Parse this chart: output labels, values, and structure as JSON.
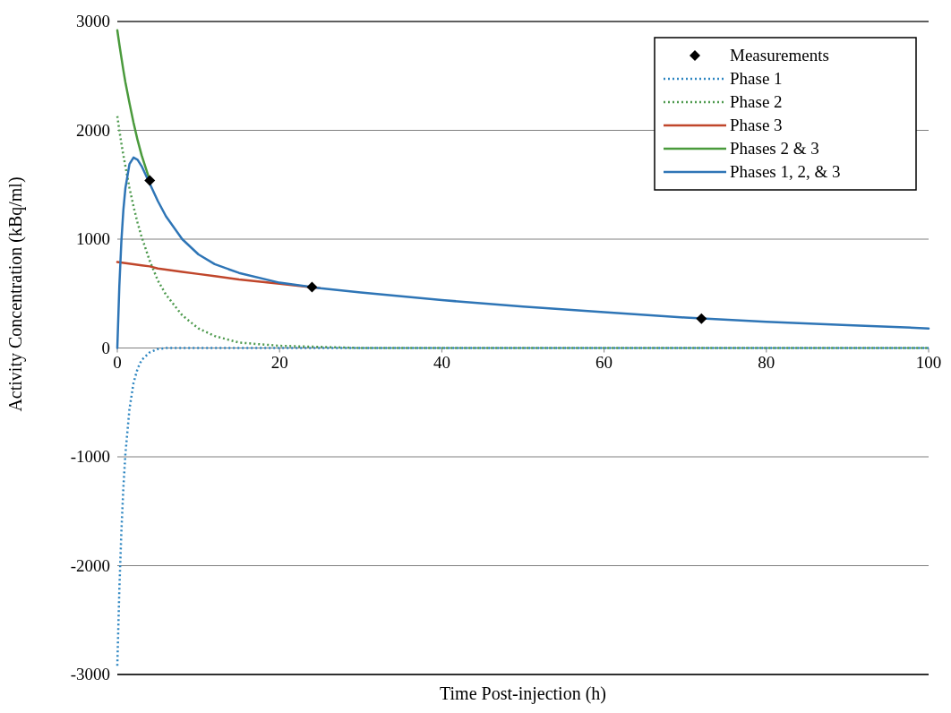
{
  "chart_data": {
    "type": "line",
    "xlabel": "Time Post-injection (h)",
    "ylabel": "Activity Concentration (kBq/ml)",
    "xlim": [
      0,
      100
    ],
    "xticks": [
      0,
      20,
      40,
      60,
      80,
      100
    ],
    "ylim": [
      -3000,
      3000
    ],
    "yticks": [
      -3000,
      -2000,
      -1000,
      0,
      1000,
      2000,
      3000
    ],
    "grid": "y",
    "legend": "top right",
    "series": [
      {
        "name": "Measurements",
        "type": "scatter",
        "marker": "diamond",
        "color": "#000000",
        "x": [
          4,
          24,
          72
        ],
        "values": [
          1540,
          560,
          270
        ]
      },
      {
        "name": "Phase 1",
        "line_style": "dotted",
        "color": "#2e86c1",
        "x": [
          0,
          0.25,
          0.5,
          0.75,
          1,
          1.5,
          2,
          2.5,
          3,
          4,
          5,
          6,
          8,
          10,
          15,
          20,
          30,
          40,
          50,
          60,
          70,
          80,
          90,
          100
        ],
        "values": [
          -2920,
          -2220,
          -1690,
          -1280,
          -970,
          -560,
          -320,
          -190,
          -110,
          -40,
          -10,
          0,
          0,
          0,
          0,
          0,
          0,
          0,
          0,
          0,
          0,
          0,
          0,
          0
        ]
      },
      {
        "name": "Phase 2",
        "line_style": "dotted",
        "color": "#4e9a4e",
        "x": [
          0,
          0.25,
          0.5,
          0.75,
          1,
          1.5,
          2,
          2.5,
          3,
          4,
          5,
          6,
          8,
          10,
          12,
          15,
          20,
          25,
          30,
          40,
          50,
          60,
          70,
          80,
          90,
          100
        ],
        "values": [
          2130,
          2000,
          1880,
          1770,
          1670,
          1470,
          1300,
          1150,
          1020,
          800,
          620,
          490,
          300,
          180,
          110,
          50,
          20,
          10,
          0,
          0,
          0,
          0,
          0,
          0,
          0,
          0
        ]
      },
      {
        "name": "Phase 3",
        "line_style": "solid",
        "color": "#c0462b",
        "x": [
          0,
          1,
          2,
          3,
          4,
          5,
          6,
          8,
          10,
          12,
          15,
          20,
          25
        ],
        "values": [
          790,
          780,
          770,
          760,
          750,
          730,
          720,
          700,
          680,
          660,
          630,
          590,
          550
        ]
      },
      {
        "name": "Phases 2 & 3",
        "line_style": "solid",
        "color": "#4a9a3c",
        "x": [
          0,
          0.25,
          0.5,
          0.75,
          1,
          1.5,
          2,
          2.5,
          3,
          4
        ],
        "values": [
          2920,
          2790,
          2670,
          2550,
          2440,
          2250,
          2070,
          1910,
          1770,
          1540
        ]
      },
      {
        "name": "Phases 1, 2, & 3",
        "line_style": "solid",
        "color": "#2e75b6",
        "x": [
          0,
          0.25,
          0.5,
          0.75,
          1,
          1.5,
          2,
          2.5,
          3,
          4,
          5,
          6,
          8,
          10,
          12,
          15,
          20,
          25,
          30,
          40,
          50,
          60,
          70,
          80,
          90,
          100
        ],
        "values": [
          0,
          570,
          980,
          1270,
          1470,
          1690,
          1750,
          1730,
          1670,
          1510,
          1350,
          1210,
          1000,
          860,
          770,
          690,
          600,
          550,
          510,
          440,
          380,
          330,
          280,
          240,
          210,
          180
        ]
      }
    ]
  }
}
